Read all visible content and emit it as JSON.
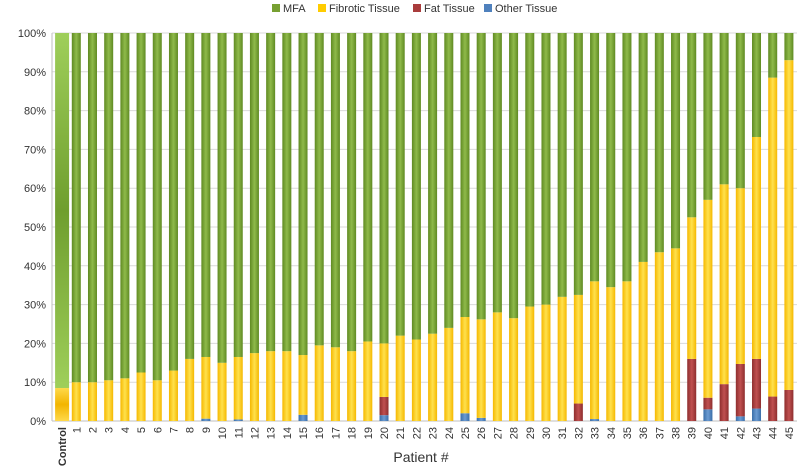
{
  "chart_data": {
    "type": "bar",
    "stacked": true,
    "percent_axis": true,
    "xlabel": "Patient #",
    "ylabel": "",
    "ylim": [
      0,
      100
    ],
    "yticks": [
      "0%",
      "10%",
      "20%",
      "30%",
      "40%",
      "50%",
      "60%",
      "70%",
      "80%",
      "90%",
      "100%"
    ],
    "legend_position": "top-center",
    "categories": [
      "Control",
      "1",
      "2",
      "3",
      "4",
      "5",
      "6",
      "7",
      "8",
      "9",
      "10",
      "11",
      "12",
      "13",
      "14",
      "15",
      "16",
      "17",
      "18",
      "19",
      "20",
      "21",
      "22",
      "23",
      "24",
      "25",
      "26",
      "27",
      "28",
      "29",
      "30",
      "31",
      "32",
      "33",
      "34",
      "35",
      "36",
      "37",
      "38",
      "39",
      "40",
      "41",
      "42",
      "43",
      "44",
      "45"
    ],
    "series": [
      {
        "name": "Other Tissue",
        "color": "#4f81bd",
        "values": [
          0,
          0,
          0,
          0,
          0,
          0,
          0,
          0,
          0,
          0.6,
          0,
          0.4,
          0,
          0,
          0,
          1.6,
          0,
          0,
          0,
          0,
          1.5,
          0,
          0,
          0,
          0,
          2,
          0.8,
          0,
          0,
          0,
          0,
          0,
          0,
          0.5,
          0,
          0,
          0,
          0,
          0,
          0,
          3,
          0,
          1.2,
          3.2,
          0,
          0
        ]
      },
      {
        "name": "Fat Tissue",
        "color": "#a93c3c",
        "values": [
          0,
          0,
          0,
          0,
          0,
          0,
          0,
          0,
          0,
          0,
          0,
          0,
          0,
          0,
          0,
          0,
          0,
          0,
          0,
          0,
          4.7,
          0,
          0,
          0,
          0,
          0,
          0,
          0,
          0,
          0,
          0,
          0,
          4.5,
          0,
          0,
          0,
          0,
          0,
          0,
          16,
          3,
          9.5,
          13.5,
          12.8,
          6.3,
          8
        ]
      },
      {
        "name": "Fibrotic Tissue",
        "color": "#ffcc00",
        "values": [
          8.5,
          10,
          10,
          10.5,
          11,
          12.5,
          10.5,
          13,
          16,
          15.9,
          15,
          16.1,
          17.5,
          18,
          18,
          15.4,
          19.5,
          19,
          18,
          20.5,
          13.8,
          22,
          21,
          22.5,
          24,
          24.8,
          25.4,
          28,
          26.5,
          29.5,
          30,
          32,
          28,
          35.5,
          34.5,
          36,
          41,
          43.5,
          44.5,
          36.5,
          51,
          51.5,
          45.3,
          57.2,
          82.2,
          85
        ]
      },
      {
        "name": "MFA",
        "color": "#77a032",
        "values": [
          91.5,
          90,
          90,
          89.5,
          89,
          87.5,
          89.5,
          87,
          84,
          83.5,
          85,
          83.5,
          82.5,
          82,
          82,
          83,
          80.5,
          81,
          82,
          79.5,
          80,
          78,
          79,
          77.5,
          76,
          73.2,
          73.8,
          72,
          73.5,
          70.5,
          70,
          68,
          67.5,
          64,
          65.5,
          64,
          59,
          56.5,
          55.5,
          47.5,
          43,
          39,
          40,
          26.8,
          11.5,
          7
        ]
      }
    ]
  }
}
